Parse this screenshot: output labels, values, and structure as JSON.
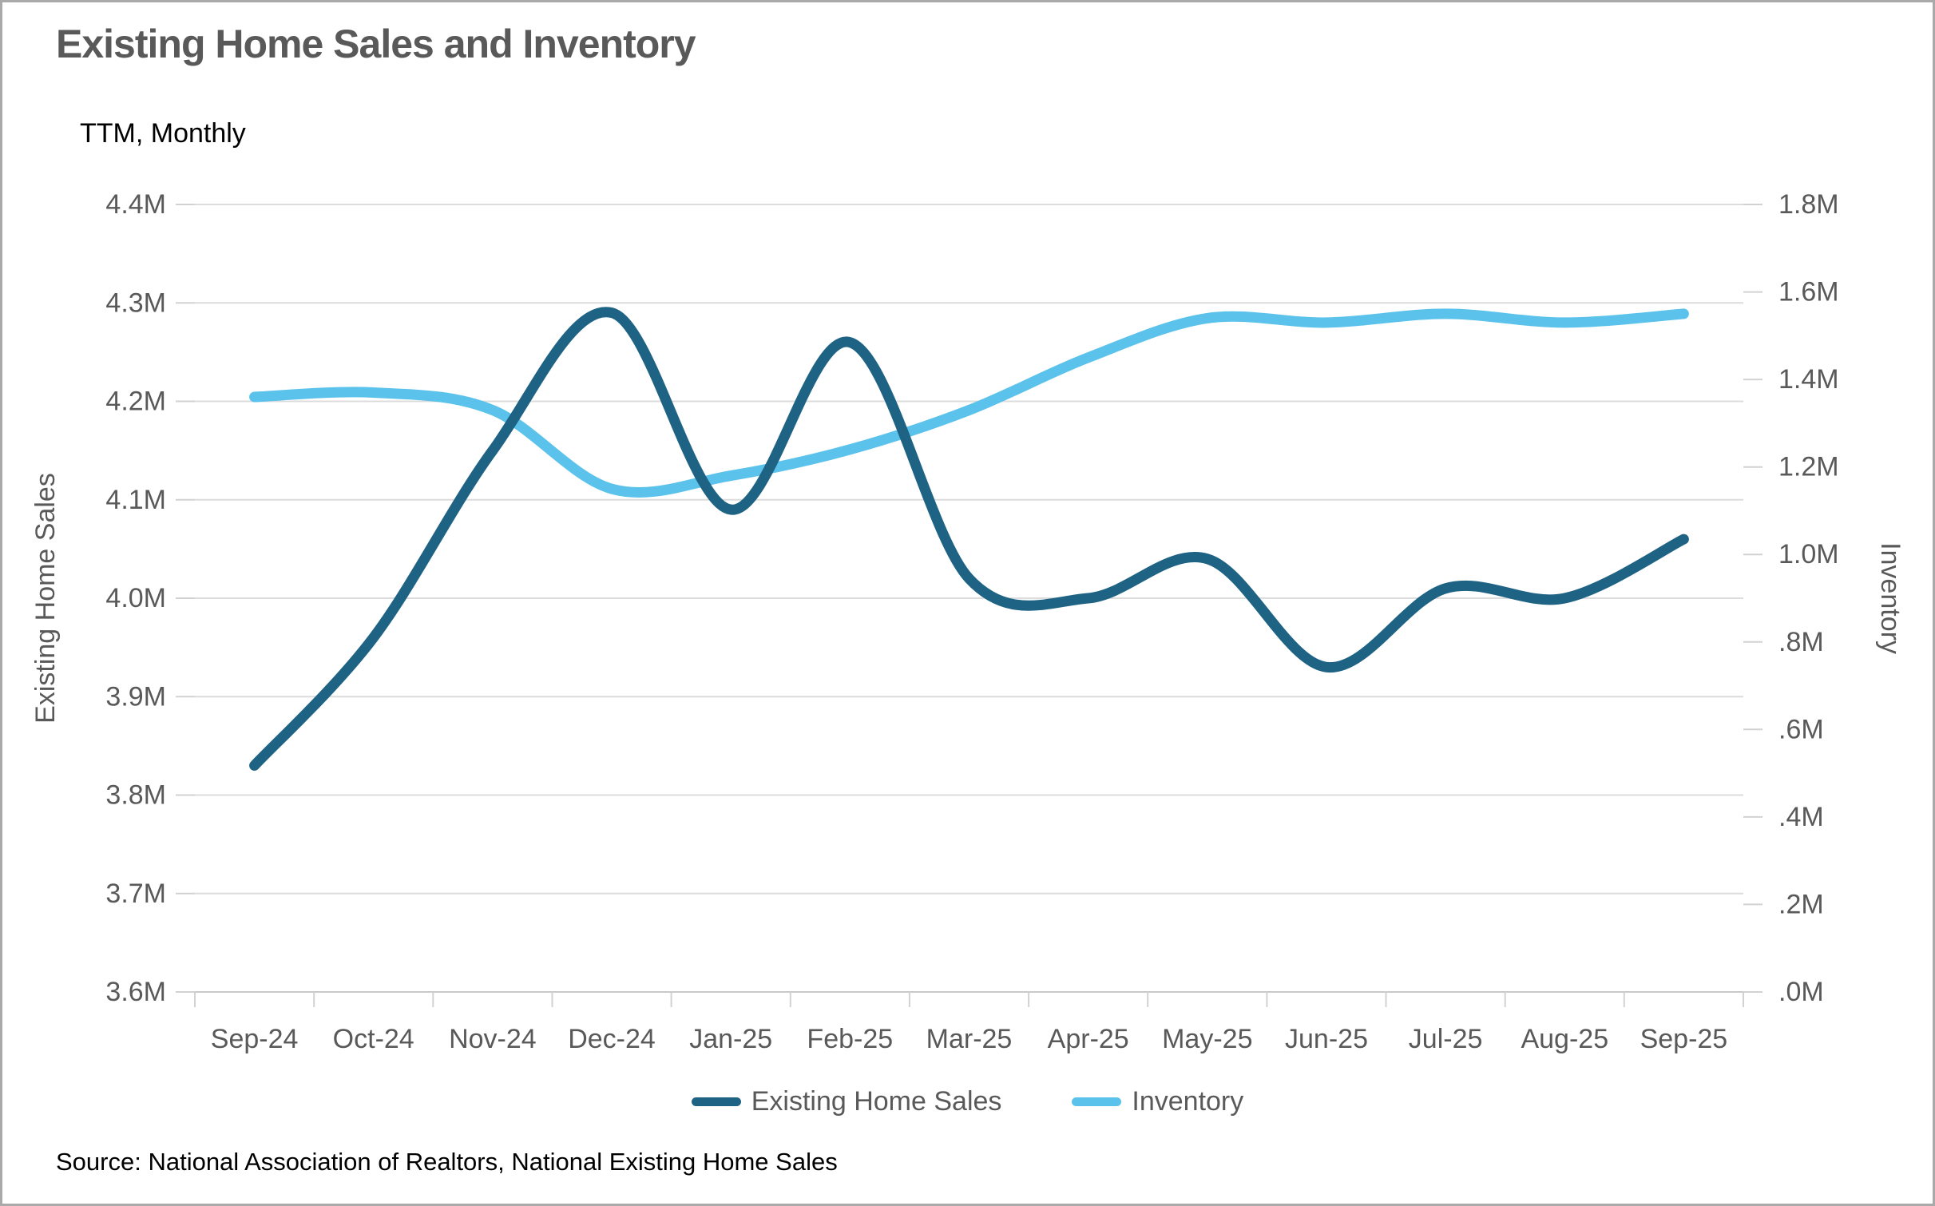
{
  "title": "Existing Home Sales and Inventory",
  "subtitle": "TTM, Monthly",
  "source_note": "Source: National Association of Realtors, National Existing Home Sales",
  "text_color": "#595959",
  "chart_data": {
    "type": "line",
    "categories": [
      "Sep-24",
      "Oct-24",
      "Nov-24",
      "Dec-24",
      "Jan-25",
      "Feb-25",
      "Mar-25",
      "Apr-25",
      "May-25",
      "Jun-25",
      "Jul-25",
      "Aug-25",
      "Sep-25"
    ],
    "series": [
      {
        "name": "Existing Home Sales",
        "axis": "left",
        "color": "#1E6284",
        "values": [
          3.83,
          3.96,
          4.15,
          4.29,
          4.09,
          4.26,
          4.02,
          4.0,
          4.04,
          3.93,
          4.01,
          4.0,
          4.06
        ]
      },
      {
        "name": "Inventory",
        "axis": "right",
        "color": "#5BC2EB",
        "values": [
          1.36,
          1.37,
          1.33,
          1.15,
          1.18,
          1.24,
          1.33,
          1.45,
          1.54,
          1.53,
          1.55,
          1.53,
          1.55
        ]
      }
    ],
    "left_axis": {
      "title": "Existing Home Sales",
      "min": 3.6,
      "max": 4.4,
      "ticks": [
        "4.4M",
        "4.3M",
        "4.2M",
        "4.1M",
        "4.0M",
        "3.9M",
        "3.8M",
        "3.7M",
        "3.6M"
      ],
      "tick_values": [
        4.4,
        4.3,
        4.2,
        4.1,
        4.0,
        3.9,
        3.8,
        3.7,
        3.6
      ]
    },
    "right_axis": {
      "title": "Inventory",
      "min": 0.0,
      "max": 1.8,
      "ticks": [
        "1.8M",
        "1.6M",
        "1.4M",
        "1.2M",
        "1.0M",
        ".8M",
        ".6M",
        ".4M",
        ".2M",
        ".0M"
      ],
      "tick_values": [
        1.8,
        1.6,
        1.4,
        1.2,
        1.0,
        0.8,
        0.6,
        0.4,
        0.2,
        0.0
      ]
    },
    "grid": true,
    "legend_position": "bottom"
  }
}
